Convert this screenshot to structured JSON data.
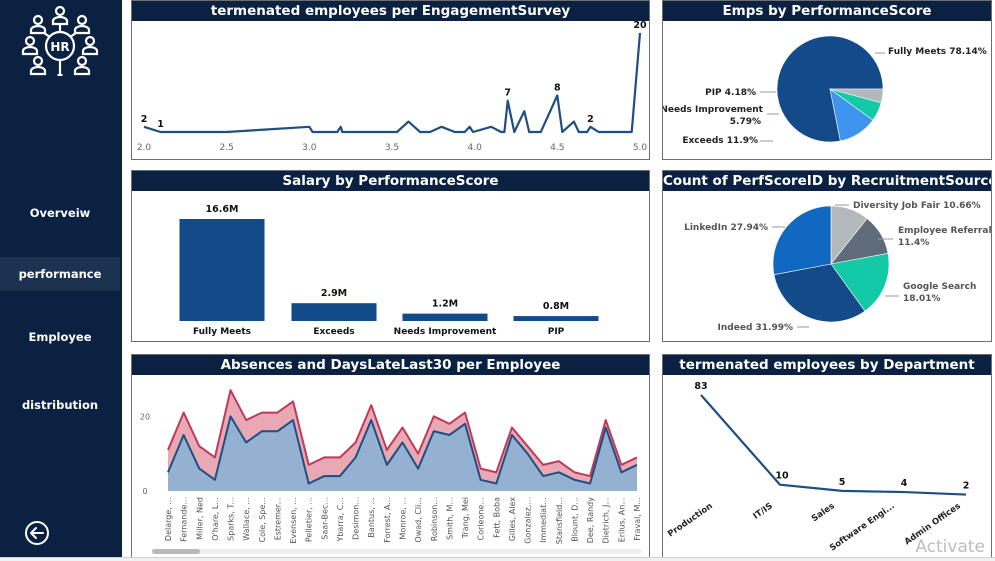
{
  "sidebar": {
    "logo_text": "HR",
    "logo_icon": "hr-people-network-icon",
    "nav": [
      {
        "label": "Overveiw",
        "active": false
      },
      {
        "label": "performance",
        "active": true
      },
      {
        "label": "Employee",
        "active": false
      },
      {
        "label": "distribution",
        "active": false
      }
    ],
    "back_icon": "back-arrow-circle-icon"
  },
  "colors": {
    "navy": "#0b2142",
    "line_blue": "#1f4e82",
    "bar_blue": "#134a8a",
    "absences_fill": "#95b1d1",
    "late_fill": "#e8a9b5",
    "late_line": "#c0395a"
  },
  "watermark": "Activate",
  "chart_data": [
    {
      "id": "engagement",
      "type": "line",
      "title": "termenated employees per EngagementSurvey",
      "xlabel": "",
      "ylabel": "",
      "xlim": [
        2.0,
        5.0
      ],
      "ylim": [
        0,
        20
      ],
      "x_ticks": [
        "2.0",
        "2.5",
        "3.0",
        "3.5",
        "4.0",
        "4.5",
        "5.0"
      ],
      "x": [
        2.0,
        2.1,
        2.5,
        3.0,
        3.02,
        3.17,
        3.19,
        3.2,
        3.53,
        3.6,
        3.67,
        3.73,
        3.8,
        3.88,
        3.94,
        3.97,
        3.99,
        4.1,
        4.16,
        4.18,
        4.2,
        4.24,
        4.3,
        4.33,
        4.4,
        4.5,
        4.53,
        4.6,
        4.63,
        4.68,
        4.7,
        4.75,
        4.95,
        5.0
      ],
      "values": [
        2,
        1,
        1,
        2,
        1,
        1,
        2,
        1,
        1,
        3,
        1,
        1,
        2,
        1,
        1,
        2,
        1,
        2,
        1,
        1,
        7,
        1,
        5,
        1,
        1,
        8,
        1,
        3,
        1,
        1,
        2,
        1,
        1,
        20
      ],
      "data_labels": [
        {
          "x": 2.0,
          "label": "2"
        },
        {
          "x": 2.1,
          "label": "1"
        },
        {
          "x": 4.2,
          "label": "7"
        },
        {
          "x": 4.5,
          "label": "8"
        },
        {
          "x": 4.7,
          "label": "2"
        },
        {
          "x": 5.0,
          "label": "20"
        }
      ],
      "grid": false,
      "legend": "none"
    },
    {
      "id": "emps_perf",
      "type": "pie",
      "title": "Emps by PerformanceScore",
      "categories": [
        "Fully Meets",
        "Exceeds",
        "Needs Improvement",
        "PIP"
      ],
      "values": [
        78.14,
        11.9,
        5.79,
        4.18
      ],
      "labels": [
        "Fully Meets 78.14%",
        "Exceeds 11.9%",
        "Needs Improvement 5.79%",
        "PIP 4.18%"
      ],
      "colors": [
        "#134a8a",
        "#3d95f0",
        "#14c9a5",
        "#b3b8bd"
      ],
      "legend": "none"
    },
    {
      "id": "salary_perf",
      "type": "bar",
      "title": "Salary by PerformanceScore",
      "categories": [
        "Fully Meets",
        "Exceeds",
        "Needs Improvement",
        "PIP"
      ],
      "values": [
        16.6,
        2.9,
        1.2,
        0.8
      ],
      "value_labels": [
        "16.6M",
        "2.9M",
        "1.2M",
        "0.8M"
      ],
      "unit": "M",
      "ylim": [
        0,
        16.6
      ],
      "xlabel": "",
      "ylabel": "",
      "grid": false,
      "legend": "none"
    },
    {
      "id": "recruit_source",
      "type": "pie",
      "title": "Count of PerfScoreID by RecruitmentSource",
      "categories": [
        "Diversity Job Fair",
        "Employee Referral",
        "Google Search",
        "Indeed",
        "LinkedIn"
      ],
      "values": [
        10.66,
        11.4,
        18.01,
        31.99,
        27.94
      ],
      "labels": [
        "Diversity Job Fair 10.66%",
        "Employee Referral 11.4%",
        "Google Search 18.01%",
        "Indeed 31.99%",
        "LinkedIn 27.94%"
      ],
      "colors": [
        "#b3b8bd",
        "#5f6b78",
        "#14c9a5",
        "#134a8a",
        "#1168c0"
      ],
      "legend": "none"
    },
    {
      "id": "absences",
      "type": "area",
      "stacked": true,
      "title": "Absences and DaysLateLast30 per Employee",
      "y_ticks": [
        "0",
        "20"
      ],
      "ylim": [
        0,
        30
      ],
      "categories": [
        "Delarge, ...",
        "Fernande...",
        "Miller, Ned",
        "O'hare, L...",
        "Sparks, T...",
        "Wallace, ...",
        "Cole, Spe...",
        "Estremer...",
        "Evensen, ...",
        "Pelletier, ...",
        "Saar-Bec...",
        "Ybarra, C...",
        "Desimon...",
        "Bantus, ...",
        "Forrest, A...",
        "Monroe, ...",
        "Owad, Cli...",
        "Robinson...",
        "Smith, M...",
        "Trang, Mei",
        "Corleone...",
        "Fett, Boba",
        "Gilles, Alex",
        "Gonzalez,...",
        "Immediat...",
        "Stansfield...",
        "Blount, D...",
        "Dee, Randy",
        "Dietrich, J...",
        "Erilus, An...",
        "Fraval, M..."
      ],
      "series": [
        {
          "name": "Absences",
          "values": [
            5,
            15,
            6,
            3,
            20,
            13,
            16,
            16,
            19,
            2,
            4,
            4,
            9,
            19,
            7,
            13,
            6,
            16,
            15,
            18,
            3,
            2,
            15,
            10,
            4,
            5,
            3,
            2,
            17,
            5,
            7
          ]
        },
        {
          "name": "DaysLateLast30",
          "values": [
            6,
            6,
            6,
            6,
            7,
            6,
            5,
            5,
            5,
            5,
            5,
            5,
            4,
            4,
            4,
            4,
            4,
            4,
            3,
            3,
            3,
            3,
            2,
            2,
            3,
            3,
            2,
            2,
            2,
            2,
            2
          ]
        }
      ],
      "grid": false,
      "legend": "none"
    },
    {
      "id": "term_dept",
      "type": "line",
      "title": "termenated employees by Department",
      "categories": [
        "Production",
        "IT/IS",
        "Sales",
        "Software Engi...",
        "Admin Offices"
      ],
      "values": [
        83,
        10,
        5,
        4,
        2
      ],
      "value_labels": [
        "83",
        "10",
        "5",
        "4",
        "2"
      ],
      "ylim": [
        0,
        83
      ],
      "grid": false,
      "legend": "none"
    }
  ]
}
